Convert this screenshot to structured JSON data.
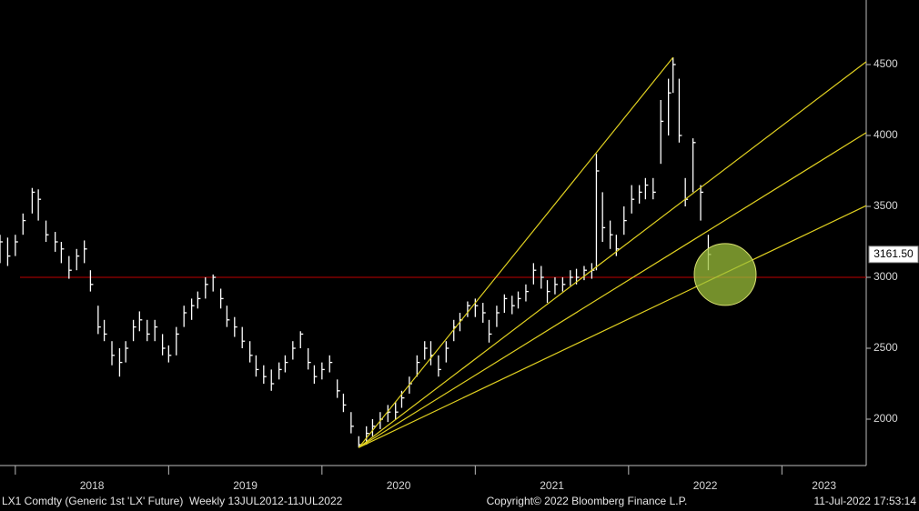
{
  "chart_data": {
    "type": "ohlc",
    "color": "#ffffff",
    "x": [
      2017.9,
      2017.95,
      2018.0,
      2018.05,
      2018.11,
      2018.15,
      2018.2,
      2018.26,
      2018.3,
      2018.35,
      2018.4,
      2018.45,
      2018.49,
      2018.54,
      2018.58,
      2018.63,
      2018.68,
      2018.72,
      2018.77,
      2018.81,
      2018.86,
      2018.91,
      2018.96,
      2019.0,
      2019.05,
      2019.1,
      2019.15,
      2019.19,
      2019.24,
      2019.29,
      2019.34,
      2019.38,
      2019.43,
      2019.48,
      2019.53,
      2019.57,
      2019.62,
      2019.67,
      2019.72,
      2019.76,
      2019.81,
      2019.86,
      2019.91,
      2019.95,
      2020.0,
      2020.05,
      2020.1,
      2020.14,
      2020.19,
      2020.24,
      2020.29,
      2020.33,
      2020.38,
      2020.43,
      2020.48,
      2020.52,
      2020.57,
      2020.62,
      2020.67,
      2020.71,
      2020.76,
      2020.81,
      2020.86,
      2020.9,
      2020.95,
      2021.0,
      2021.05,
      2021.09,
      2021.14,
      2021.19,
      2021.24,
      2021.28,
      2021.33,
      2021.38,
      2021.43,
      2021.47,
      2021.52,
      2021.57,
      2021.62,
      2021.66,
      2021.71,
      2021.76,
      2021.79,
      2021.83,
      2021.88,
      2021.92,
      2021.97,
      2022.02,
      2022.07,
      2022.11,
      2022.16,
      2022.21,
      2022.26,
      2022.29,
      2022.33,
      2022.37,
      2022.42,
      2022.47,
      2022.52
    ],
    "high": [
      3300,
      3280,
      3300,
      3450,
      3630,
      3620,
      3400,
      3320,
      3250,
      3150,
      3200,
      3260,
      3050,
      2800,
      2700,
      2550,
      2500,
      2550,
      2700,
      2760,
      2700,
      2700,
      2600,
      2520,
      2650,
      2800,
      2850,
      2900,
      3000,
      3020,
      2920,
      2800,
      2720,
      2650,
      2550,
      2450,
      2380,
      2350,
      2400,
      2450,
      2550,
      2620,
      2500,
      2380,
      2400,
      2450,
      2280,
      2180,
      2050,
      1880,
      1950,
      2000,
      2050,
      2100,
      2120,
      2200,
      2300,
      2450,
      2550,
      2550,
      2450,
      2550,
      2700,
      2750,
      2830,
      2850,
      2820,
      2700,
      2800,
      2880,
      2870,
      2900,
      2950,
      3100,
      3080,
      2980,
      3000,
      3000,
      3050,
      3060,
      3080,
      3100,
      3870,
      3600,
      3400,
      3300,
      3500,
      3650,
      3650,
      3700,
      3700,
      4250,
      4400,
      4550,
      4400,
      3700,
      3980,
      3650,
      3300
    ],
    "low": [
      3100,
      3080,
      3150,
      3300,
      3450,
      3400,
      3250,
      3180,
      3100,
      2990,
      3050,
      3100,
      2900,
      2600,
      2550,
      2380,
      2300,
      2400,
      2550,
      2620,
      2550,
      2550,
      2450,
      2400,
      2450,
      2650,
      2700,
      2780,
      2850,
      2900,
      2780,
      2650,
      2580,
      2500,
      2400,
      2300,
      2250,
      2200,
      2280,
      2330,
      2420,
      2500,
      2350,
      2250,
      2280,
      2330,
      2150,
      2050,
      1900,
      1800,
      1820,
      1880,
      1930,
      1980,
      2000,
      2080,
      2180,
      2300,
      2420,
      2380,
      2300,
      2400,
      2550,
      2620,
      2720,
      2720,
      2680,
      2540,
      2650,
      2750,
      2740,
      2780,
      2830,
      2950,
      2920,
      2820,
      2880,
      2900,
      2940,
      2950,
      2980,
      2990,
      3050,
      3250,
      3200,
      3150,
      3300,
      3450,
      3520,
      3550,
      3550,
      3800,
      4000,
      4300,
      3950,
      3500,
      3600,
      3400,
      3050
    ],
    "close": [
      3250,
      3150,
      3250,
      3400,
      3600,
      3550,
      3300,
      3250,
      3200,
      3050,
      3150,
      3200,
      2950,
      2650,
      2600,
      2450,
      2400,
      2500,
      2650,
      2700,
      2600,
      2650,
      2500,
      2450,
      2600,
      2750,
      2800,
      2850,
      2950,
      3000,
      2850,
      2700,
      2650,
      2550,
      2450,
      2350,
      2300,
      2250,
      2350,
      2400,
      2500,
      2600,
      2400,
      2300,
      2350,
      2400,
      2200,
      2100,
      1950,
      1820,
      1900,
      1950,
      2000,
      2050,
      2050,
      2150,
      2250,
      2400,
      2500,
      2450,
      2350,
      2500,
      2650,
      2700,
      2800,
      2800,
      2750,
      2600,
      2750,
      2850,
      2800,
      2850,
      2900,
      3050,
      3000,
      2900,
      2950,
      2950,
      3000,
      3000,
      3050,
      3050,
      3750,
      3350,
      3300,
      3200,
      3400,
      3550,
      3600,
      3650,
      3600,
      4100,
      4300,
      4500,
      4000,
      3550,
      3950,
      3600,
      3161.5
    ],
    "last_price": {
      "value": 3161.5,
      "label": "3161.50"
    },
    "xlim": [
      2017.9,
      2023.55
    ],
    "xticks": [
      2018,
      2019,
      2020,
      2021,
      2022,
      2023
    ],
    "ylim": [
      1686,
      4955
    ],
    "yticks": [
      2000,
      2500,
      3000,
      3500,
      4000,
      4500
    ],
    "reference_line": {
      "value": 3000,
      "color": "#c00000"
    },
    "trendlines": [
      {
        "x": [
          2020.24,
          2022.29
        ],
        "values": [
          1800,
          4550
        ],
        "color": "#e0d020"
      },
      {
        "x": [
          2020.24,
          2023.55
        ],
        "values": [
          1800,
          4520
        ],
        "color": "#e0d020"
      },
      {
        "x": [
          2020.24,
          2023.55
        ],
        "values": [
          1800,
          4020
        ],
        "color": "#e0d020"
      },
      {
        "x": [
          2020.24,
          2023.55
        ],
        "values": [
          1800,
          3505
        ],
        "color": "#e0d020"
      }
    ],
    "highlight": {
      "x": 2022.63,
      "y": 3020,
      "color": "#9bbf3a"
    },
    "footer": {
      "left": "LX1 Comdty (Generic 1st 'LX' Future)  Weekly 13JUL2012-11JUL2022",
      "center": "Copyright© 2022 Bloomberg Finance L.P.",
      "right": "11-Jul-2022 17:53:14"
    }
  }
}
